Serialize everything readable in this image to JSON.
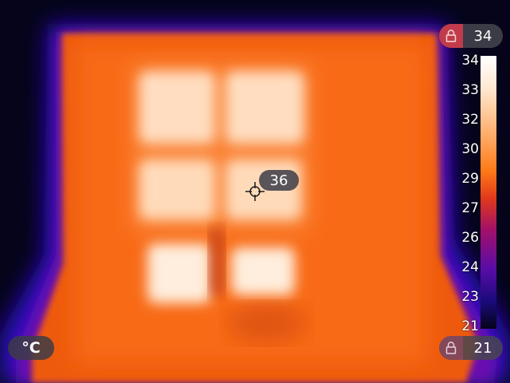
{
  "spot_temperature": "36",
  "scale": {
    "max_locked": "34",
    "min_locked": "21",
    "labels": [
      "34",
      "33",
      "32",
      "30",
      "29",
      "27",
      "26",
      "24",
      "23",
      "21"
    ]
  },
  "unit": "°C",
  "icons": {
    "top_lock": "lock-icon",
    "bottom_lock": "lock-icon",
    "spot": "crosshair-icon"
  },
  "colors": {
    "background": "#05041a",
    "cold": "#1a0a7a",
    "warm": "#ff7a18",
    "hot": "#ffffff",
    "lock_active": "#c23b4a"
  }
}
